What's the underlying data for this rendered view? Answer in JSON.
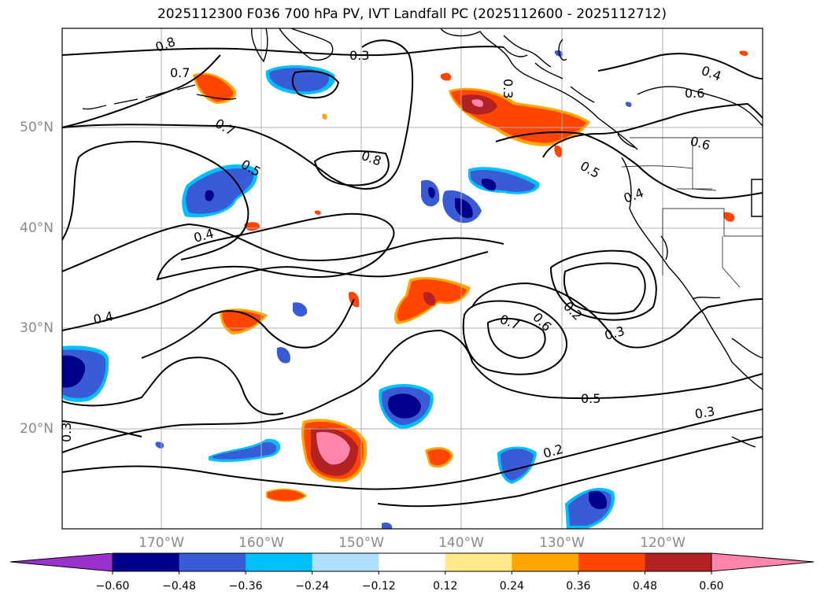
{
  "title": "2025112300 F036 700 hPa PV, IVT Landfall PC (2025112600 - 2025112712)",
  "lon_labels": [
    "170°W",
    "160°W",
    "150°W",
    "140°W",
    "130°W",
    "120°W"
  ],
  "lat_labels": [
    "50°N",
    "40°N",
    "30°N",
    "20°N"
  ],
  "contour_labels": [
    "0.8",
    "0.7",
    "0.7",
    "0.5",
    "0.4",
    "0.3",
    "0.3",
    "0.8",
    "0.4",
    "0.4",
    "0.6",
    "0.6",
    "0.5",
    "0.4",
    "0.2",
    "0.3",
    "0.7",
    "0.6",
    "0.5",
    "0.3",
    "0.2",
    "0.3"
  ],
  "colorbar": {
    "ticks": [
      "−0.60",
      "−0.48",
      "−0.36",
      "−0.24",
      "−0.12",
      "0.12",
      "0.24",
      "0.36",
      "0.48",
      "0.60"
    ],
    "colors": [
      "#9932cc",
      "#00008b",
      "#3a5bd6",
      "#00bfff",
      "#b0e0fa",
      "#ffffff",
      "#ffe98a",
      "#ffa500",
      "#ff4500",
      "#b22222",
      "#ff85aa"
    ]
  },
  "colors": {
    "land_outline": "#000000",
    "grid": "#b0b0b0",
    "contour": "#000000"
  }
}
